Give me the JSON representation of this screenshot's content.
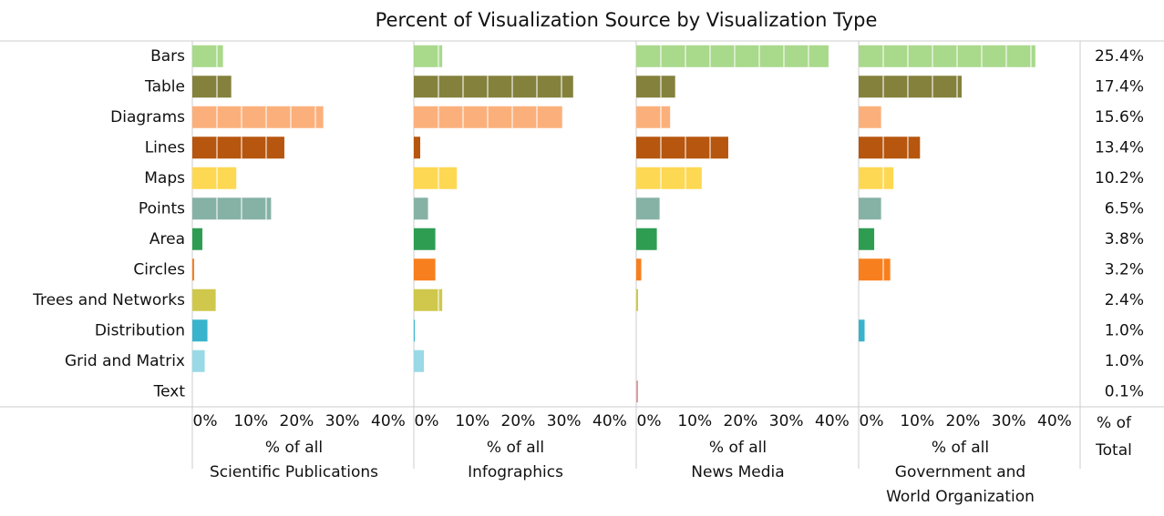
{
  "chart_data": {
    "type": "bar",
    "title": "Percent of Visualization Source by Visualization Type",
    "categories": [
      "Bars",
      "Table",
      "Diagrams",
      "Lines",
      "Maps",
      "Points",
      "Area",
      "Circles",
      "Trees and Networks",
      "Distribution",
      "Grid and Matrix",
      "Text"
    ],
    "colors": [
      "#a9d98b",
      "#84813d",
      "#fbb07b",
      "#b6560f",
      "#fdd853",
      "#86b2a5",
      "#2e9d52",
      "#f87f1e",
      "#cfc84c",
      "#39b4cc",
      "#9ad9e6",
      "#d9a0a4"
    ],
    "xlim": [
      0,
      44
    ],
    "xticks": [
      {
        "value": 0,
        "label": "0%"
      },
      {
        "value": 10,
        "label": "10%"
      },
      {
        "value": 20,
        "label": "20%"
      },
      {
        "value": 30,
        "label": "30%"
      },
      {
        "value": 40,
        "label": "40%"
      }
    ],
    "panels": [
      {
        "xlabel": [
          "% of all",
          "Scientific Publications"
        ],
        "values": [
          6.7,
          8.5,
          28.6,
          20.1,
          9.6,
          17.2,
          2.2,
          0.4,
          5.1,
          3.3,
          2.7,
          0
        ]
      },
      {
        "xlabel": [
          "% of all",
          "Infographics"
        ],
        "values": [
          6.2,
          34.8,
          32.4,
          1.4,
          9.4,
          3.1,
          4.7,
          4.7,
          6.2,
          0.2,
          2.2,
          0
        ]
      },
      {
        "xlabel": [
          "% of all",
          "News Media"
        ],
        "values": [
          42.0,
          8.5,
          7.4,
          20.1,
          14.3,
          5.1,
          4.5,
          1.1,
          0.4,
          0,
          0,
          0.4
        ]
      },
      {
        "xlabel": [
          "% of all",
          "Government and",
          "World Organization"
        ],
        "values": [
          38.6,
          22.5,
          4.9,
          13.4,
          7.6,
          4.9,
          3.4,
          6.9,
          0,
          1.3,
          0,
          0
        ]
      }
    ],
    "total": {
      "title": [
        "% of",
        "Total"
      ],
      "values": [
        25.4,
        17.4,
        15.6,
        13.4,
        10.2,
        6.5,
        3.8,
        3.2,
        2.4,
        1.0,
        1.0,
        0.1
      ],
      "value_labels": [
        "25.4%",
        "17.4%",
        "15.6%",
        "13.4%",
        "10.2%",
        "6.5%",
        "3.8%",
        "3.2%",
        "2.4%",
        "1.0%",
        "1.0%",
        "0.1%"
      ]
    }
  }
}
